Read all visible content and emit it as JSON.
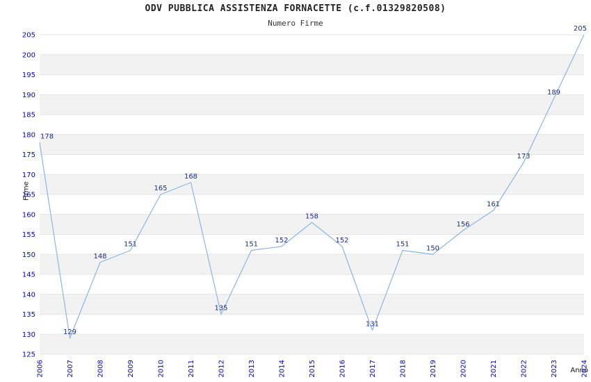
{
  "chart_data": {
    "type": "line",
    "title": "ODV PUBBLICA ASSISTENZA FORNACETTE (c.f.01329820508)",
    "subtitle": "Numero Firme",
    "xlabel": "Anno",
    "ylabel": "Firme",
    "categories": [
      "2006",
      "2007",
      "2008",
      "2009",
      "2010",
      "2011",
      "2012",
      "2013",
      "2014",
      "2015",
      "2016",
      "2017",
      "2018",
      "2019",
      "2020",
      "2021",
      "2022",
      "2023",
      "2024"
    ],
    "values": [
      178,
      129,
      148,
      151,
      165,
      168,
      135,
      151,
      152,
      158,
      152,
      131,
      151,
      150,
      156,
      161,
      173,
      189,
      205
    ],
    "ylim": [
      125,
      205
    ],
    "ytick_step": 5,
    "grid": true,
    "legend": false,
    "layout_hint": "alternating horizontal stripe bands, rotated x tick labels",
    "colors": {
      "line": "#8cb6e2",
      "data_label": "#1c2e86",
      "tick_label": "#0000cc",
      "stripe": "#f2f2f2",
      "grid": "#e4e4e4",
      "title": "#222222",
      "background": "#ffffff"
    }
  }
}
